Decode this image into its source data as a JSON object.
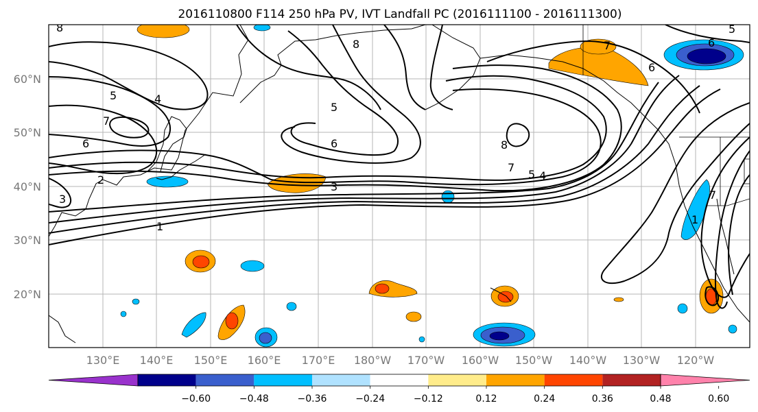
{
  "title": "2016110800 F114 250 hPa PV, IVT Landfall PC (2016111100 - 2016111300)",
  "map": {
    "lat_ticks": [
      "60°N",
      "50°N",
      "40°N",
      "30°N",
      "20°N"
    ],
    "lon_ticks": [
      "130°E",
      "140°E",
      "150°E",
      "160°E",
      "170°E",
      "180°W",
      "170°W",
      "160°W",
      "150°W",
      "140°W",
      "130°W",
      "120°W"
    ],
    "contour_labels": [
      "8",
      "5",
      "4",
      "7",
      "6",
      "5",
      "6",
      "6",
      "7",
      "1",
      "8",
      "8",
      "5",
      "6",
      "7",
      "5",
      "4",
      "3",
      "3",
      "1",
      "2",
      "7"
    ]
  },
  "colorbar": {
    "tick_labels": [
      "-0.60",
      "-0.48",
      "-0.36",
      "-0.24",
      "-0.12",
      "0.12",
      "0.24",
      "0.36",
      "0.48",
      "0.60"
    ],
    "colors": [
      "#9932cc",
      "#00008b",
      "#3a5fcd",
      "#00bfff",
      "#b0e2ff",
      "#ffffff",
      "#ffec8b",
      "#ffa500",
      "#ff4500",
      "#b22222",
      "#ff82ab"
    ]
  }
}
